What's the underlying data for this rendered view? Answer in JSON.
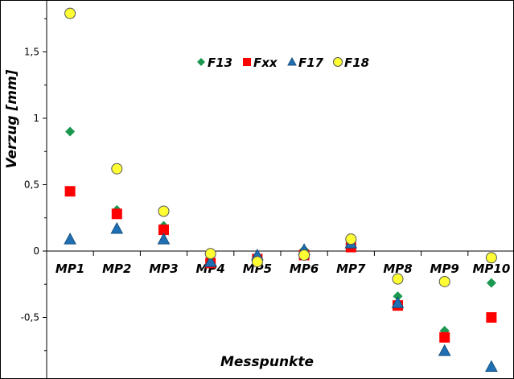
{
  "chart_data": {
    "type": "scatter",
    "categories": [
      "MP1",
      "MP2",
      "MP3",
      "MP4",
      "MP5",
      "MP6",
      "MP7",
      "MP8",
      "MP9",
      "MP10"
    ],
    "xlabel": "Messpunkte",
    "ylabel": "Verzug [mm]",
    "ylim": [
      -0.95,
      1.85
    ],
    "yticks": [
      -0.5,
      0,
      0.5,
      1,
      1.5
    ],
    "ytick_labels": [
      "-0,5",
      "0",
      "0,5",
      "1",
      "1,5"
    ],
    "grid": false,
    "legend_position": "top-center",
    "series": [
      {
        "name": "F13",
        "marker": "diamond",
        "color": "#1a9850",
        "values": [
          0.9,
          0.31,
          0.19,
          -0.08,
          -0.05,
          0.01,
          0.06,
          -0.34,
          -0.6,
          -0.24
        ]
      },
      {
        "name": "Fxx",
        "marker": "square",
        "color": "#ff0000",
        "values": [
          0.45,
          0.28,
          0.16,
          -0.09,
          -0.06,
          -0.03,
          0.03,
          -0.41,
          -0.65,
          -0.5
        ]
      },
      {
        "name": "F17",
        "marker": "triangle",
        "color": "#1f6fb4",
        "values": [
          0.09,
          0.17,
          0.09,
          -0.08,
          -0.03,
          0.01,
          0.06,
          -0.39,
          -0.75,
          -0.87
        ]
      },
      {
        "name": "F18",
        "marker": "circle",
        "color": "#ffff33",
        "values": [
          1.79,
          0.62,
          0.3,
          -0.02,
          -0.08,
          -0.03,
          0.09,
          -0.21,
          -0.23,
          -0.05
        ]
      }
    ]
  }
}
